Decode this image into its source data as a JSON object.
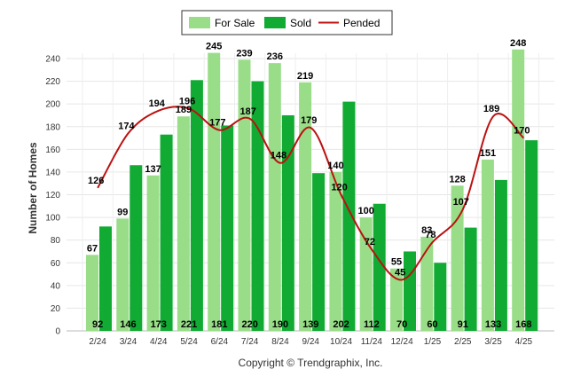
{
  "chart_data": {
    "type": "bar",
    "categories": [
      "2/24",
      "3/24",
      "4/24",
      "5/24",
      "6/24",
      "7/24",
      "8/24",
      "9/24",
      "10/24",
      "11/24",
      "12/24",
      "1/25",
      "2/25",
      "3/25",
      "4/25"
    ],
    "series": [
      {
        "name": "For Sale",
        "kind": "bar",
        "color": "#99dd88",
        "values": [
          67,
          99,
          137,
          189,
          245,
          239,
          236,
          219,
          140,
          100,
          55,
          83,
          128,
          151,
          248
        ]
      },
      {
        "name": "Sold",
        "kind": "bar",
        "color": "#11aa33",
        "values": [
          92,
          146,
          173,
          221,
          181,
          220,
          190,
          139,
          202,
          112,
          70,
          60,
          91,
          133,
          168
        ]
      },
      {
        "name": "Pended",
        "kind": "line",
        "color": "#bb1111",
        "values": [
          126,
          174,
          194,
          196,
          177,
          187,
          148,
          179,
          120,
          72,
          45,
          78,
          107,
          189,
          170
        ]
      }
    ],
    "xlabel": "",
    "ylabel": "Number of Homes",
    "ylim": [
      0,
      250
    ],
    "yticks": [
      0,
      20,
      40,
      60,
      80,
      100,
      120,
      140,
      160,
      180,
      200,
      220,
      240
    ],
    "grid": true,
    "legend_position": "top-center"
  },
  "credit": "Copyright © Trendgraphix, Inc."
}
